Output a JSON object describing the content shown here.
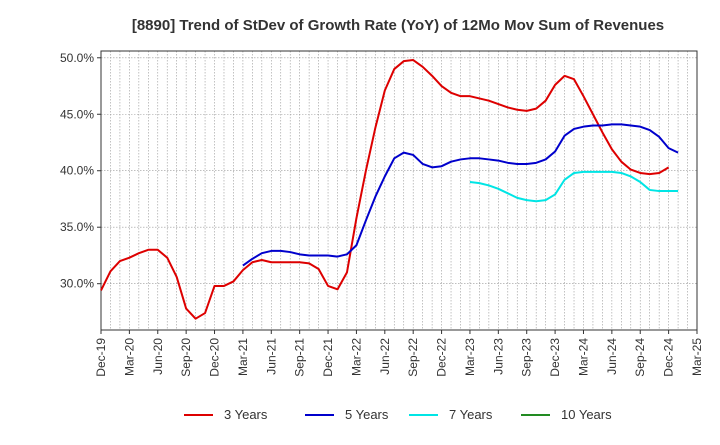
{
  "chart_data": {
    "type": "line",
    "title": "[8890]  Trend of StDev of Growth Rate (YoY) of 12Mo Mov Sum of Revenues",
    "xlabel": "",
    "ylabel": "",
    "ylim": [
      25.9,
      50.6
    ],
    "yticks": [
      30.0,
      35.0,
      40.0,
      45.0,
      50.0
    ],
    "ytick_labels": [
      "30.0%",
      "35.0%",
      "40.0%",
      "45.0%",
      "50.0%"
    ],
    "x_start": "Dec-19",
    "x_end": "Mar-25",
    "xtick_labels": [
      "Dec-19",
      "Mar-20",
      "Jun-20",
      "Sep-20",
      "Dec-20",
      "Mar-21",
      "Jun-21",
      "Sep-21",
      "Dec-21",
      "Mar-22",
      "Jun-22",
      "Sep-22",
      "Dec-22",
      "Mar-23",
      "Jun-23",
      "Sep-23",
      "Dec-23",
      "Mar-24",
      "Jun-24",
      "Sep-24",
      "Dec-24",
      "Mar-25"
    ],
    "grid": true,
    "legend_position": "bottom",
    "series": [
      {
        "name": "3 Years",
        "color": "#dd0000",
        "start_index": 0,
        "values": [
          29.4,
          31.1,
          32.0,
          32.3,
          32.7,
          33.0,
          33.0,
          32.3,
          30.6,
          27.8,
          26.9,
          27.4,
          29.8,
          29.8,
          30.2,
          31.2,
          31.9,
          32.1,
          31.9,
          31.9,
          31.9,
          31.9,
          31.8,
          31.3,
          29.8,
          29.5,
          31.0,
          35.8,
          40.0,
          43.8,
          47.1,
          49.0,
          49.7,
          49.8,
          49.2,
          48.4,
          47.5,
          46.9,
          46.6,
          46.6,
          46.4,
          46.2,
          45.9,
          45.6,
          45.4,
          45.3,
          45.5,
          46.2,
          47.6,
          48.4,
          48.1,
          46.6,
          45.0,
          43.4,
          41.9,
          40.8,
          40.1,
          39.8,
          39.7,
          39.8,
          40.3
        ]
      },
      {
        "name": "5 Years",
        "color": "#0000cc",
        "start_index": 15,
        "values": [
          31.6,
          32.2,
          32.7,
          32.9,
          32.9,
          32.8,
          32.6,
          32.5,
          32.5,
          32.5,
          32.4,
          32.6,
          33.4,
          35.6,
          37.7,
          39.5,
          41.1,
          41.6,
          41.4,
          40.6,
          40.3,
          40.4,
          40.8,
          41.0,
          41.1,
          41.1,
          41.0,
          40.9,
          40.7,
          40.6,
          40.6,
          40.7,
          41.0,
          41.7,
          43.1,
          43.7,
          43.9,
          44.0,
          44.0,
          44.1,
          44.1,
          44.0,
          43.9,
          43.6,
          43.0,
          42.0,
          41.6
        ]
      },
      {
        "name": "7 Years",
        "color": "#00e5e5",
        "start_index": 39,
        "values": [
          39.0,
          38.9,
          38.7,
          38.4,
          38.0,
          37.6,
          37.4,
          37.3,
          37.4,
          37.9,
          39.2,
          39.8,
          39.9,
          39.9,
          39.9,
          39.9,
          39.8,
          39.5,
          39.0,
          38.3,
          38.2,
          38.2,
          38.2
        ]
      },
      {
        "name": "10 Years",
        "color": "#228b22",
        "start_index": 0,
        "values": []
      }
    ]
  }
}
